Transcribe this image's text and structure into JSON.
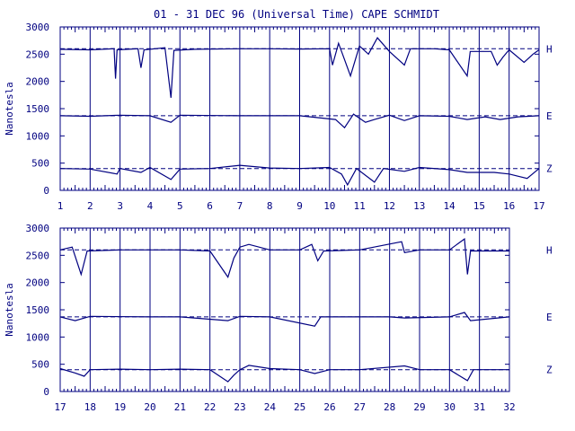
{
  "title": "01 - 31 DEC 96 (Universal Time) CAPE SCHMIDT",
  "colors": {
    "ink": "#000080",
    "background": "#ffffff"
  },
  "chart_data": [
    {
      "type": "line",
      "ylabel": "Nanotesla",
      "xlim": [
        1,
        17
      ],
      "ylim": [
        0,
        3000
      ],
      "yticks": [
        "0",
        "500",
        "1000",
        "1500",
        "2000",
        "2500",
        "3000"
      ],
      "xticks": [
        "1",
        "2",
        "3",
        "4",
        "5",
        "6",
        "7",
        "8",
        "9",
        "10",
        "11",
        "12",
        "13",
        "14",
        "15",
        "16",
        "17"
      ],
      "grid": "vertical lines at each day",
      "series": [
        {
          "name": "H",
          "baseline": 2600,
          "points": [
            [
              1,
              2590
            ],
            [
              2,
              2580
            ],
            [
              2.8,
              2600
            ],
            [
              2.85,
              2050
            ],
            [
              2.9,
              2580
            ],
            [
              3.6,
              2600
            ],
            [
              3.7,
              2250
            ],
            [
              3.8,
              2580
            ],
            [
              4.5,
              2620
            ],
            [
              4.7,
              1700
            ],
            [
              4.8,
              2570
            ],
            [
              5.5,
              2590
            ],
            [
              7,
              2600
            ],
            [
              8,
              2600
            ],
            [
              9,
              2595
            ],
            [
              10,
              2600
            ],
            [
              10.1,
              2300
            ],
            [
              10.3,
              2700
            ],
            [
              10.5,
              2400
            ],
            [
              10.7,
              2100
            ],
            [
              11,
              2650
            ],
            [
              11.3,
              2500
            ],
            [
              11.6,
              2800
            ],
            [
              12,
              2550
            ],
            [
              12.5,
              2300
            ],
            [
              12.7,
              2600
            ],
            [
              13.5,
              2600
            ],
            [
              14,
              2580
            ],
            [
              14.6,
              2100
            ],
            [
              14.7,
              2550
            ],
            [
              15.4,
              2550
            ],
            [
              15.6,
              2300
            ],
            [
              15.8,
              2450
            ],
            [
              16,
              2580
            ],
            [
              16.5,
              2350
            ],
            [
              16.8,
              2500
            ],
            [
              17,
              2580
            ]
          ]
        },
        {
          "name": "E",
          "baseline": 1370,
          "points": [
            [
              1,
              1370
            ],
            [
              2,
              1360
            ],
            [
              3,
              1380
            ],
            [
              4,
              1370
            ],
            [
              4.7,
              1250
            ],
            [
              5,
              1380
            ],
            [
              7,
              1370
            ],
            [
              9,
              1370
            ],
            [
              10.2,
              1300
            ],
            [
              10.5,
              1150
            ],
            [
              10.8,
              1400
            ],
            [
              11.2,
              1250
            ],
            [
              11.5,
              1300
            ],
            [
              12,
              1380
            ],
            [
              12.5,
              1280
            ],
            [
              13,
              1370
            ],
            [
              14,
              1360
            ],
            [
              14.6,
              1300
            ],
            [
              15.2,
              1350
            ],
            [
              15.7,
              1300
            ],
            [
              16.3,
              1350
            ],
            [
              17,
              1370
            ]
          ]
        },
        {
          "name": "Z",
          "baseline": 400,
          "points": [
            [
              1,
              400
            ],
            [
              2,
              390
            ],
            [
              2.9,
              300
            ],
            [
              3,
              400
            ],
            [
              3.7,
              330
            ],
            [
              4,
              420
            ],
            [
              4.7,
              200
            ],
            [
              5,
              390
            ],
            [
              6,
              400
            ],
            [
              7,
              460
            ],
            [
              8,
              410
            ],
            [
              9,
              400
            ],
            [
              10,
              420
            ],
            [
              10.4,
              300
            ],
            [
              10.6,
              100
            ],
            [
              10.9,
              400
            ],
            [
              11.5,
              150
            ],
            [
              11.8,
              400
            ],
            [
              12.5,
              350
            ],
            [
              13,
              420
            ],
            [
              14,
              380
            ],
            [
              14.6,
              330
            ],
            [
              15.5,
              330
            ],
            [
              16,
              300
            ],
            [
              16.6,
              220
            ],
            [
              17,
              400
            ]
          ]
        }
      ]
    },
    {
      "type": "line",
      "ylabel": "Nanotesla",
      "xlim": [
        17,
        32
      ],
      "ylim": [
        0,
        3000
      ],
      "yticks": [
        "0",
        "500",
        "1000",
        "1500",
        "2000",
        "2500",
        "3000"
      ],
      "xticks": [
        "17",
        "18",
        "19",
        "20",
        "21",
        "22",
        "23",
        "24",
        "25",
        "26",
        "27",
        "28",
        "29",
        "30",
        "31",
        "32"
      ],
      "grid": "vertical lines at each day",
      "series": [
        {
          "name": "H",
          "baseline": 2600,
          "points": [
            [
              17,
              2600
            ],
            [
              17.4,
              2650
            ],
            [
              17.7,
              2150
            ],
            [
              17.9,
              2580
            ],
            [
              19,
              2600
            ],
            [
              20,
              2600
            ],
            [
              21,
              2600
            ],
            [
              22,
              2580
            ],
            [
              22.6,
              2100
            ],
            [
              22.8,
              2450
            ],
            [
              23,
              2650
            ],
            [
              23.3,
              2700
            ],
            [
              24,
              2600
            ],
            [
              25,
              2600
            ],
            [
              25.4,
              2700
            ],
            [
              25.6,
              2400
            ],
            [
              25.8,
              2580
            ],
            [
              27,
              2600
            ],
            [
              28.4,
              2750
            ],
            [
              28.5,
              2550
            ],
            [
              29,
              2600
            ],
            [
              30,
              2600
            ],
            [
              30.5,
              2800
            ],
            [
              30.6,
              2150
            ],
            [
              30.7,
              2580
            ],
            [
              32,
              2580
            ]
          ]
        },
        {
          "name": "E",
          "baseline": 1370,
          "points": [
            [
              17,
              1370
            ],
            [
              17.5,
              1300
            ],
            [
              18,
              1380
            ],
            [
              20,
              1370
            ],
            [
              21,
              1370
            ],
            [
              22.6,
              1300
            ],
            [
              23,
              1380
            ],
            [
              24,
              1370
            ],
            [
              25.5,
              1200
            ],
            [
              25.7,
              1370
            ],
            [
              28,
              1370
            ],
            [
              28.5,
              1350
            ],
            [
              30,
              1370
            ],
            [
              30.5,
              1450
            ],
            [
              30.7,
              1300
            ],
            [
              32,
              1370
            ]
          ]
        },
        {
          "name": "Z",
          "baseline": 400,
          "points": [
            [
              17,
              420
            ],
            [
              17.5,
              340
            ],
            [
              17.8,
              280
            ],
            [
              18,
              400
            ],
            [
              19,
              410
            ],
            [
              20,
              400
            ],
            [
              21,
              410
            ],
            [
              22,
              400
            ],
            [
              22.6,
              180
            ],
            [
              22.8,
              300
            ],
            [
              23,
              400
            ],
            [
              23.3,
              480
            ],
            [
              24,
              420
            ],
            [
              25,
              400
            ],
            [
              25.5,
              330
            ],
            [
              26,
              400
            ],
            [
              27,
              400
            ],
            [
              28.5,
              470
            ],
            [
              29,
              400
            ],
            [
              30,
              400
            ],
            [
              30.6,
              200
            ],
            [
              30.8,
              400
            ],
            [
              32,
              400
            ]
          ]
        }
      ]
    }
  ]
}
